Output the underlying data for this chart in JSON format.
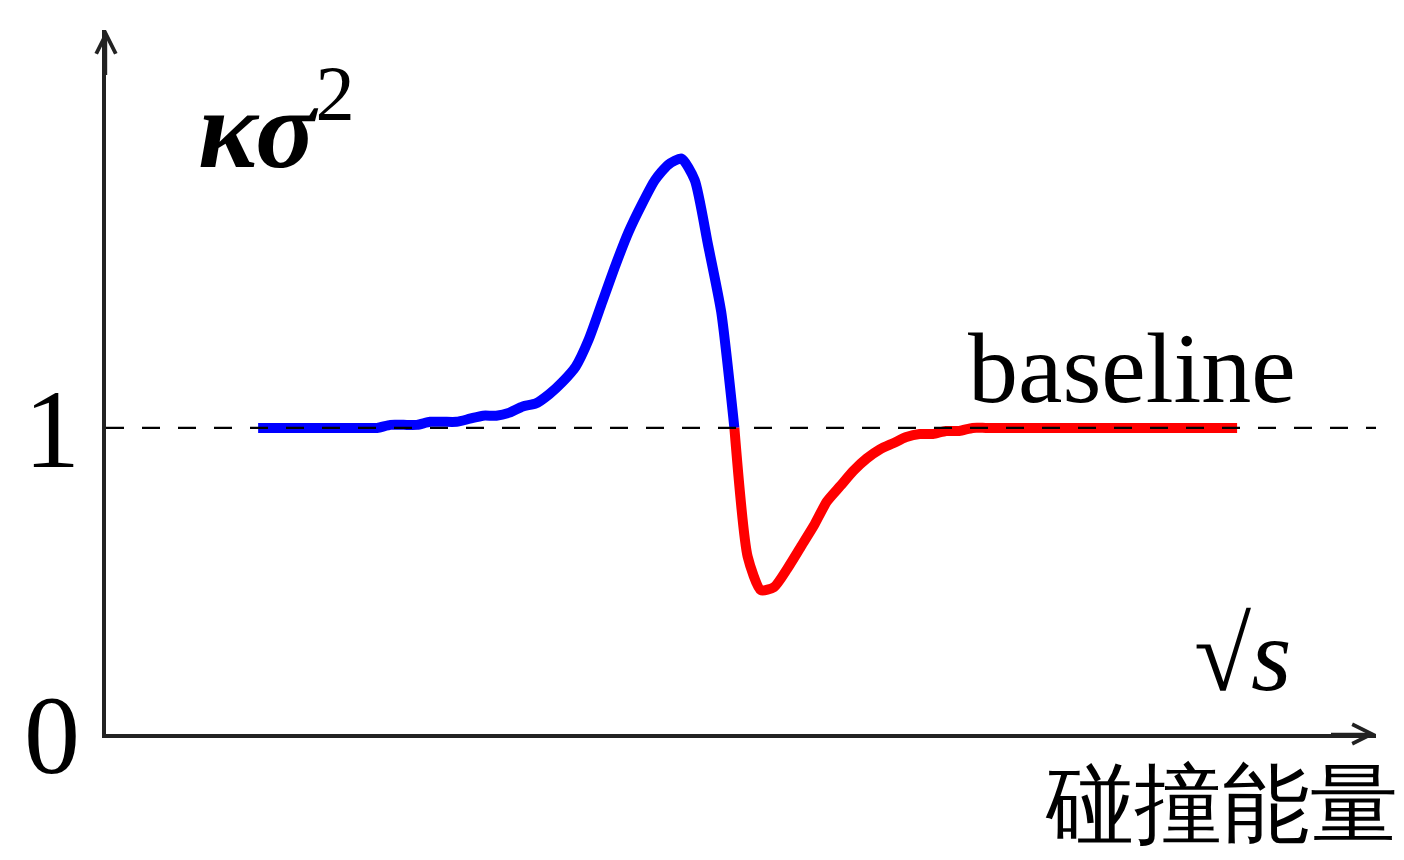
{
  "chart_data": {
    "type": "line",
    "ylabel": "κσ$^{2}$",
    "xlabel": "碰撞能量",
    "annotations": [
      "√s"
    ],
    "categories": [
      null,
      null,
      null,
      null,
      null,
      null,
      null,
      null,
      null,
      null,
      null,
      null,
      null,
      null,
      null,
      null,
      null,
      null,
      null,
      null,
      null,
      null,
      null,
      null,
      null,
      null,
      null,
      null,
      null,
      null,
      null,
      null,
      null,
      null,
      null,
      null,
      null,
      null,
      null,
      null,
      null,
      null,
      null,
      null,
      null,
      null,
      null,
      null,
      null,
      null,
      null,
      null,
      null,
      null,
      null,
      null,
      null,
      null,
      null,
      null,
      null,
      null,
      null,
      null,
      null,
      null,
      null,
      null,
      null,
      null,
      null,
      null,
      null,
      null,
      null,
      null,
      null,
      null,
      null,
      null,
      null,
      null,
      null,
      null,
      null,
      null,
      null,
      null,
      null,
      null,
      null,
      null,
      null,
      null,
      null,
      null
    ],
    "series": [
      {
        "color": "#0000ff",
        "values": [
          null,
          null,
          null,
          null,
          null,
          null,
          null,
          null,
          null,
          null,
          null,
          1.0,
          1.0,
          1.0,
          1.0,
          1.0,
          1.0,
          1.0,
          1.0,
          1.0,
          1.0,
          1.01,
          1.01,
          1.01,
          1.02,
          1.02,
          1.02,
          1.03,
          1.04,
          1.04,
          1.05,
          1.07,
          1.08,
          1.11,
          1.15,
          1.2,
          1.29,
          1.41,
          1.53,
          1.64,
          1.73,
          1.81,
          1.86,
          1.88,
          1.81,
          1.6,
          1.38,
          1.0,
          null,
          null,
          null,
          null,
          null,
          null,
          null,
          null,
          null,
          null,
          null,
          null,
          null,
          null,
          null,
          null,
          null,
          null,
          null,
          null,
          null,
          null,
          null,
          null,
          null,
          null,
          null,
          null,
          null,
          null,
          null,
          null,
          null,
          null,
          null,
          null,
          null,
          null,
          null,
          null,
          null,
          null,
          null,
          null,
          null,
          null,
          null,
          null
        ]
      },
      {
        "color": "#ff0000",
        "values": [
          null,
          null,
          null,
          null,
          null,
          null,
          null,
          null,
          null,
          null,
          null,
          null,
          null,
          null,
          null,
          null,
          null,
          null,
          null,
          null,
          null,
          null,
          null,
          null,
          null,
          null,
          null,
          null,
          null,
          null,
          null,
          null,
          null,
          null,
          null,
          null,
          null,
          null,
          null,
          null,
          null,
          null,
          null,
          null,
          null,
          null,
          null,
          1.0,
          0.58,
          0.47,
          0.48,
          0.54,
          0.61,
          0.68,
          0.76,
          0.81,
          0.86,
          0.9,
          0.93,
          0.95,
          0.97,
          0.98,
          0.98,
          0.99,
          0.99,
          1.0,
          1.0,
          1.0,
          1.0,
          1.0,
          1.0,
          1.0,
          1.0,
          1.0,
          1.0,
          1.0,
          1.0,
          1.0,
          1.0,
          1.0,
          1.0,
          1.0,
          1.0,
          1.0,
          1.0,
          1.0,
          null,
          null,
          null,
          null,
          null,
          null,
          null,
          null,
          null,
          null
        ]
      }
    ],
    "ylim": [
      0,
      2.3
    ],
    "yticks": [
      0,
      1
    ],
    "ref_lines": [
      {
        "axis": "y",
        "value": 1,
        "label": "baseline",
        "color": "#000000",
        "line_style": "dashed"
      }
    ],
    "tick_labels": "y"
  }
}
